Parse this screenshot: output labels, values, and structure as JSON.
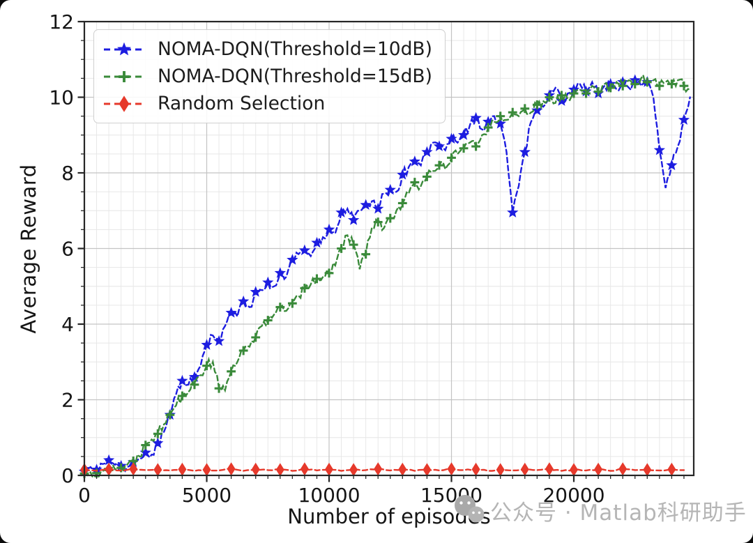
{
  "watermark": {
    "text": "公众号 · Matlab科研助手",
    "icon": "wechat-icon",
    "color": "#b5b5b5"
  },
  "chart_data": {
    "type": "line",
    "title": "",
    "xlabel": "Number of episodes",
    "ylabel": "Average Reward",
    "xlim": [
      0,
      24900
    ],
    "ylim": [
      0,
      12
    ],
    "x_major_ticks": [
      0,
      5000,
      10000,
      15000,
      20000
    ],
    "x_minor_step": 500,
    "y_major_ticks": [
      0,
      2,
      4,
      6,
      8,
      10,
      12
    ],
    "y_minor_step": 0.5,
    "grid": "major+minor",
    "legend_position": "upper-left",
    "axis_color": "#262626",
    "major_grid_color": "#c3c3c3",
    "minor_grid_color": "#e6e6e6",
    "series": [
      {
        "name": "NOMA-DQN(Threshold=10dB)",
        "color": "#1d1de0",
        "linestyle": "dashed",
        "marker": "star",
        "marker_every": 2,
        "noise": 0.13,
        "x_start": 0,
        "x_step": 250,
        "values": [
          0.1,
          0.22,
          0.15,
          0.3,
          0.4,
          0.28,
          0.25,
          0.22,
          0.35,
          0.45,
          0.6,
          0.55,
          0.85,
          1.15,
          1.6,
          2.15,
          2.5,
          2.4,
          2.6,
          2.9,
          3.45,
          3.7,
          3.55,
          3.95,
          4.3,
          4.2,
          4.6,
          4.45,
          4.85,
          4.9,
          5.1,
          5.0,
          5.35,
          5.25,
          5.7,
          5.85,
          5.95,
          5.8,
          6.15,
          6.3,
          6.5,
          6.4,
          6.95,
          7.05,
          6.75,
          7.0,
          7.15,
          7.25,
          7.05,
          7.45,
          7.55,
          7.5,
          7.95,
          8.15,
          8.3,
          8.2,
          8.55,
          8.8,
          8.7,
          8.6,
          8.9,
          8.8,
          9.0,
          9.25,
          9.45,
          9.15,
          9.35,
          9.5,
          9.3,
          8.55,
          6.95,
          7.65,
          8.55,
          9.35,
          9.65,
          9.75,
          10.05,
          10.25,
          9.9,
          10.1,
          10.2,
          10.35,
          10.15,
          10.4,
          10.1,
          10.3,
          10.35,
          10.2,
          10.4,
          10.25,
          10.45,
          10.3,
          10.4,
          10.0,
          8.6,
          7.6,
          8.2,
          8.7,
          9.4,
          10.0
        ]
      },
      {
        "name": "NOMA-DQN(Threshold=15dB)",
        "color": "#3a8a3a",
        "linestyle": "dashed",
        "marker": "plus",
        "marker_every": 2,
        "noise": 0.13,
        "x_start": 0,
        "x_step": 250,
        "values": [
          0.05,
          0.08,
          0.06,
          0.1,
          0.14,
          0.16,
          0.2,
          0.28,
          0.38,
          0.5,
          0.8,
          0.95,
          1.1,
          1.35,
          1.6,
          1.85,
          2.1,
          2.2,
          2.4,
          2.65,
          2.9,
          3.0,
          2.3,
          2.25,
          2.75,
          3.0,
          3.3,
          3.4,
          3.65,
          3.95,
          4.1,
          4.25,
          4.45,
          4.35,
          4.55,
          4.75,
          4.95,
          5.05,
          5.2,
          5.25,
          5.35,
          5.55,
          6.0,
          6.35,
          6.1,
          5.45,
          5.85,
          6.55,
          6.7,
          6.55,
          6.8,
          7.0,
          7.2,
          7.45,
          7.75,
          7.65,
          7.9,
          8.05,
          8.2,
          8.1,
          8.4,
          8.5,
          8.65,
          8.8,
          8.7,
          9.0,
          9.2,
          9.35,
          9.5,
          9.4,
          9.6,
          9.5,
          9.7,
          9.6,
          9.8,
          9.9,
          10.0,
          9.85,
          10.05,
          9.95,
          10.1,
          10.2,
          10.1,
          10.3,
          10.15,
          10.35,
          10.25,
          10.4,
          10.3,
          10.45,
          10.35,
          10.5,
          10.4,
          10.45,
          10.3,
          10.4,
          10.35,
          10.45,
          10.3,
          10.2
        ]
      },
      {
        "name": "Random Selection",
        "color": "#e6392b",
        "linestyle": "dashed",
        "marker": "thin-diamond",
        "marker_every": 2,
        "noise": 0.015,
        "x_start": 0,
        "x_step": 500,
        "values": [
          0.15,
          0.12,
          0.16,
          0.13,
          0.17,
          0.14,
          0.15,
          0.13,
          0.16,
          0.12,
          0.15,
          0.13,
          0.17,
          0.12,
          0.16,
          0.14,
          0.15,
          0.12,
          0.17,
          0.13,
          0.16,
          0.12,
          0.15,
          0.14,
          0.17,
          0.13,
          0.16,
          0.12,
          0.15,
          0.13,
          0.17,
          0.14,
          0.16,
          0.12,
          0.15,
          0.13,
          0.16,
          0.14,
          0.17,
          0.12,
          0.15,
          0.13,
          0.16,
          0.12,
          0.17,
          0.14,
          0.15,
          0.13,
          0.16,
          0.14
        ]
      }
    ]
  }
}
